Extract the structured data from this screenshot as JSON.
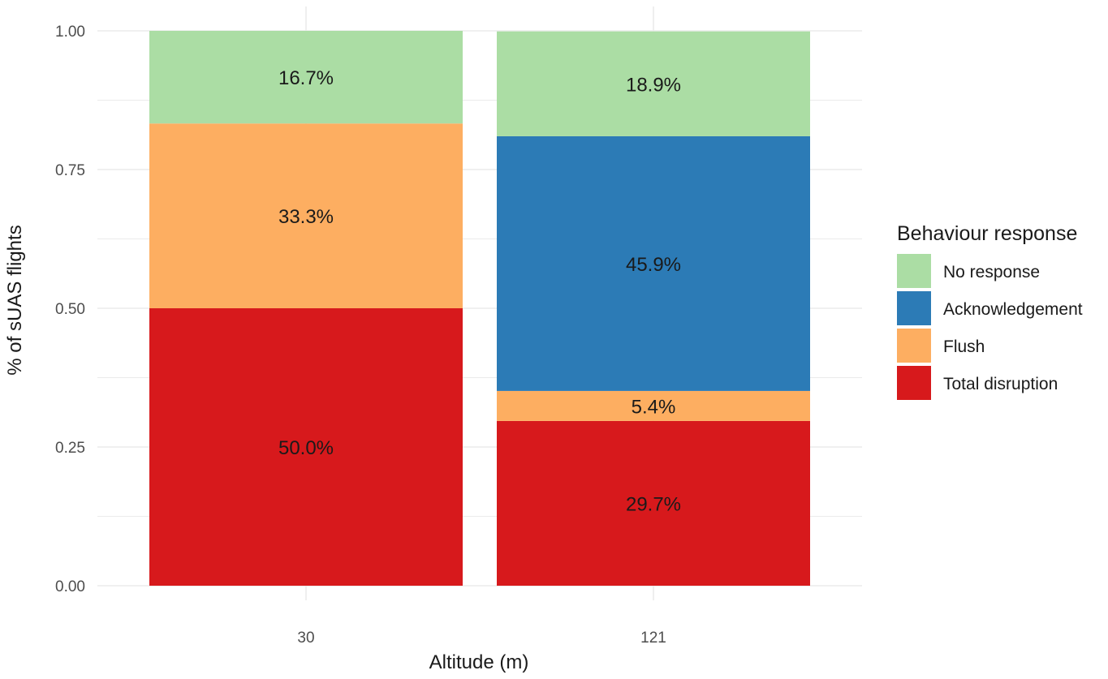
{
  "chart_data": {
    "type": "bar",
    "stacked": true,
    "categories": [
      "30",
      "121"
    ],
    "series": [
      {
        "name": "Total disruption",
        "color": "#d7191c",
        "values": [
          0.5,
          0.297
        ],
        "labels": [
          "50.0%",
          "29.7%"
        ]
      },
      {
        "name": "Flush",
        "color": "#fdae61",
        "values": [
          0.333,
          0.054
        ],
        "labels": [
          "33.3%",
          "5.4%"
        ]
      },
      {
        "name": "Acknowledgement",
        "color": "#2c7bb6",
        "values": [
          0,
          0.459
        ],
        "labels": [
          "",
          "45.9%"
        ]
      },
      {
        "name": "No response",
        "color": "#abdda4",
        "values": [
          0.167,
          0.189
        ],
        "labels": [
          "16.7%",
          "18.9%"
        ]
      }
    ],
    "legend_order": [
      "No response",
      "Acknowledgement",
      "Flush",
      "Total disruption"
    ],
    "legend_title": "Behaviour response",
    "legend_position": "right",
    "xlabel": "Altitude (m)",
    "ylabel": "% of sUAS flights",
    "ylim": [
      0,
      1
    ],
    "yticks": [
      "0.00",
      "0.25",
      "0.50",
      "0.75",
      "1.00"
    ],
    "grid": true,
    "grid_color": "#ebebeb"
  }
}
